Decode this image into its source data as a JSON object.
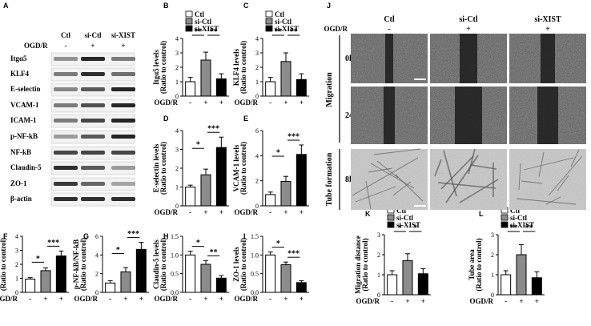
{
  "panel_letters": {
    "A": "A",
    "B": "B",
    "C": "C",
    "D": "D",
    "E": "E",
    "F": "F",
    "G": "G",
    "H": "H",
    "I": "I",
    "J": "J",
    "K": "K",
    "L": "L"
  },
  "groups": [
    "Ctl",
    "si-Ctl",
    "si-XIST"
  ],
  "legend": [
    "Ctl",
    "si-Ctl",
    "si-XIST"
  ],
  "ogdr_label": "OGD/R",
  "ogdr_signs": [
    "-",
    "+",
    "+"
  ],
  "colors": {
    "ctl": "#ffffff",
    "si_ctl": "#8c8c8c",
    "si_xist": "#000000",
    "band": "#1a1a1a"
  },
  "western_blot": {
    "header": [
      "Ctl",
      "si-Ctl",
      "si-XIST"
    ],
    "proteins": [
      "Itgα5",
      "KLF4",
      "E-selectin",
      "VCAM-1",
      "ICAM-1",
      "p-NF-kB",
      "NF-kB",
      "Claudin-5",
      "ZO-1",
      "β-actin"
    ]
  },
  "microscopy": {
    "header": [
      "Ctl",
      "si-Ctl",
      "si-XIST"
    ],
    "signs": [
      "-",
      "+",
      "+"
    ],
    "side_labels": [
      "Migration",
      "Tube formation"
    ],
    "row_labels": [
      "0h",
      "24h",
      "8h"
    ]
  },
  "chart_data": [
    {
      "id": "B",
      "type": "bar",
      "categories": [
        "Ctl",
        "si-Ctl",
        "si-XIST"
      ],
      "values": [
        1.0,
        2.5,
        1.2
      ],
      "errors": [
        0.3,
        0.55,
        0.35
      ],
      "ylabel": "Itgα5 levels\n(Ratio to control)",
      "ylim": [
        0,
        4
      ],
      "yticks": [
        0,
        1,
        2,
        3,
        4
      ],
      "legend": "top-left",
      "sig": [
        {
          "from": 0,
          "to": 1,
          "label": "**"
        },
        {
          "from": 1,
          "to": 2,
          "label": "**"
        }
      ]
    },
    {
      "id": "C",
      "type": "bar",
      "categories": [
        "Ctl",
        "si-Ctl",
        "si-XIST"
      ],
      "values": [
        1.0,
        2.4,
        1.15
      ],
      "errors": [
        0.3,
        0.6,
        0.4
      ],
      "ylabel": "KLF4 levels\n(Ratio to control)",
      "ylim": [
        0,
        4
      ],
      "yticks": [
        0,
        1,
        2,
        3,
        4
      ],
      "legend": "top-left",
      "sig": [
        {
          "from": 0,
          "to": 1,
          "label": "**"
        },
        {
          "from": 1,
          "to": 2,
          "label": "**"
        }
      ]
    },
    {
      "id": "D",
      "type": "bar",
      "categories": [
        "Ctl",
        "si-Ctl",
        "si-XIST"
      ],
      "values": [
        1.0,
        1.65,
        3.1
      ],
      "errors": [
        0.1,
        0.3,
        0.55
      ],
      "ylabel": "E-selectin levels\n(Ratio to control)",
      "ylim": [
        0,
        4
      ],
      "yticks": [
        0,
        1,
        2,
        3,
        4
      ],
      "sig": [
        {
          "from": 0,
          "to": 1,
          "label": "*"
        },
        {
          "from": 1,
          "to": 2,
          "label": "***"
        }
      ]
    },
    {
      "id": "E",
      "type": "bar",
      "categories": [
        "Ctl",
        "si-Ctl",
        "si-XIST"
      ],
      "values": [
        0.9,
        1.95,
        4.1
      ],
      "errors": [
        0.2,
        0.4,
        0.75
      ],
      "ylabel": "VCAM-1 levels\n(Ratio to control)",
      "ylim": [
        0,
        6
      ],
      "yticks": [
        0,
        2,
        4,
        6
      ],
      "sig": [
        {
          "from": 0,
          "to": 1,
          "label": "*"
        },
        {
          "from": 1,
          "to": 2,
          "label": "***"
        }
      ]
    },
    {
      "id": "F",
      "type": "bar",
      "categories": [
        "Ctl",
        "si-Ctl",
        "si-XIST"
      ],
      "values": [
        0.95,
        1.55,
        2.6
      ],
      "errors": [
        0.1,
        0.2,
        0.35
      ],
      "ylabel": "ICAM-1 levels\n(Ratio to control)",
      "ylim": [
        0,
        4
      ],
      "yticks": [
        0,
        1,
        2,
        3,
        4
      ],
      "sig": [
        {
          "from": 0,
          "to": 1,
          "label": "*"
        },
        {
          "from": 1,
          "to": 2,
          "label": "***"
        }
      ]
    },
    {
      "id": "G",
      "type": "bar",
      "categories": [
        "Ctl",
        "si-Ctl",
        "si-XIST"
      ],
      "values": [
        1.0,
        2.2,
        4.6
      ],
      "errors": [
        0.25,
        0.45,
        0.75
      ],
      "ylabel": "p-NF-kB/NF-kB\n(Ratio to control)",
      "ylim": [
        0,
        6
      ],
      "yticks": [
        0,
        2,
        4,
        6
      ],
      "sig": [
        {
          "from": 0,
          "to": 1,
          "label": "*"
        },
        {
          "from": 1,
          "to": 2,
          "label": "***"
        }
      ]
    },
    {
      "id": "H",
      "type": "bar",
      "categories": [
        "Ctl",
        "si-Ctl",
        "si-XIST"
      ],
      "values": [
        1.0,
        0.75,
        0.38
      ],
      "errors": [
        0.1,
        0.1,
        0.07
      ],
      "ylabel": "Claudin-5 levels\n(Ratio to control)",
      "ylim": [
        0,
        1.5
      ],
      "yticks": [
        0,
        0.5,
        1.0,
        1.5
      ],
      "sig": [
        {
          "from": 0,
          "to": 1,
          "label": "*"
        },
        {
          "from": 1,
          "to": 2,
          "label": "**"
        }
      ]
    },
    {
      "id": "I",
      "type": "bar",
      "categories": [
        "Ctl",
        "si-Ctl",
        "si-XIST"
      ],
      "values": [
        1.0,
        0.74,
        0.26
      ],
      "errors": [
        0.08,
        0.07,
        0.05
      ],
      "ylabel": "ZO-1 levels\n(Ratio to control)",
      "ylim": [
        0,
        1.5
      ],
      "yticks": [
        0,
        0.5,
        1.0,
        1.5
      ],
      "sig": [
        {
          "from": 0,
          "to": 1,
          "label": "*"
        },
        {
          "from": 1,
          "to": 2,
          "label": "***"
        }
      ]
    },
    {
      "id": "K",
      "type": "bar",
      "categories": [
        "Ctl",
        "si-Ctl",
        "si-XIST"
      ],
      "values": [
        1.0,
        1.7,
        1.05
      ],
      "errors": [
        0.2,
        0.35,
        0.25
      ],
      "ylabel": "Migration distance\n(Ratio to control)",
      "ylim": [
        0,
        3
      ],
      "yticks": [
        0,
        1,
        2,
        3
      ],
      "legend": "top-left",
      "sig": [
        {
          "from": 0,
          "to": 1,
          "label": "*"
        },
        {
          "from": 1,
          "to": 2,
          "label": "*"
        }
      ]
    },
    {
      "id": "L",
      "type": "bar",
      "categories": [
        "Ctl",
        "si-Ctl",
        "si-XIST"
      ],
      "values": [
        1.0,
        2.0,
        0.85
      ],
      "errors": [
        0.2,
        0.5,
        0.3
      ],
      "ylabel": "Tube area\n(Ratio to control)",
      "ylim": [
        0,
        3
      ],
      "yticks": [
        0,
        1,
        2,
        3
      ],
      "legend": "top-left",
      "sig": [
        {
          "from": 0,
          "to": 1,
          "label": "**"
        },
        {
          "from": 1,
          "to": 2,
          "label": "**"
        }
      ]
    }
  ]
}
